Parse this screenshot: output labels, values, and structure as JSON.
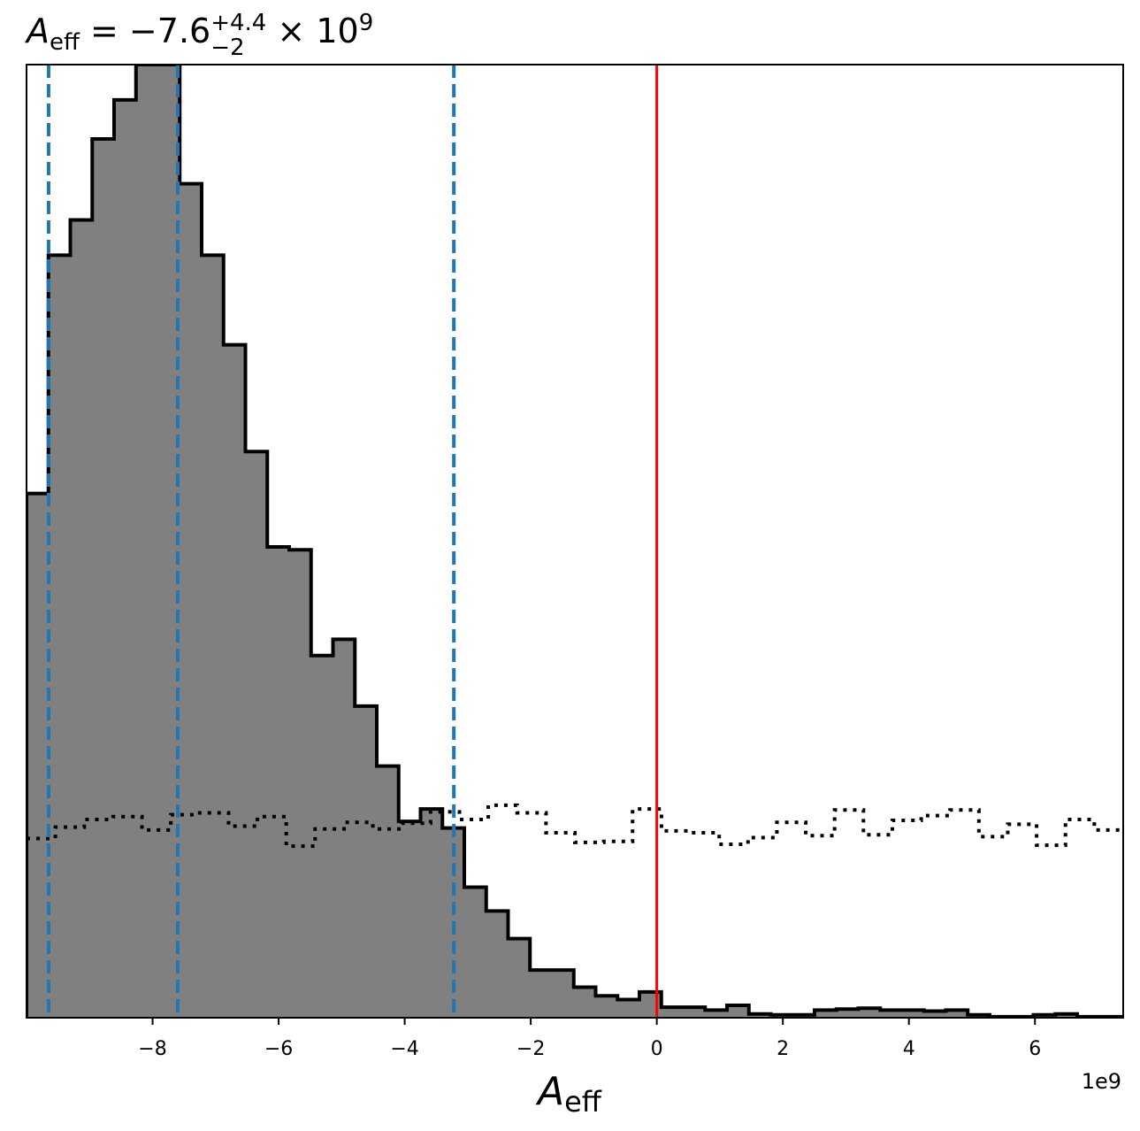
{
  "chart_data": {
    "type": "histogram",
    "title": {
      "symbol": "A",
      "symbol_sub": "eff",
      "equals": " = ",
      "median": "−7.6",
      "err_plus": "+4.4",
      "err_minus": "−2",
      "multiplier": " × 10",
      "exponent": "9"
    },
    "xlabel": {
      "symbol": "A",
      "sub": "eff"
    },
    "x_offset_label": "1e9",
    "x_scale": 1000000000.0,
    "xlim": [
      -10,
      7.4
    ],
    "ylim": [
      0,
      1.0
    ],
    "xticks": [
      -8,
      -6,
      -4,
      -2,
      0,
      2,
      4,
      6
    ],
    "xtick_labels": [
      "−8",
      "−6",
      "−4",
      "−2",
      "0",
      "2",
      "4",
      "6"
    ],
    "yticks_visible": false,
    "bin_width": 0.3473,
    "series": [
      {
        "style": "filled-step",
        "fill": "#808080",
        "edge": "#000000",
        "values": [
          0.55,
          0.8,
          0.837,
          0.922,
          0.963,
          1.0,
          1.0,
          0.875,
          0.8,
          0.706,
          0.594,
          0.494,
          0.491,
          0.38,
          0.397,
          0.327,
          0.264,
          0.206,
          0.219,
          0.199,
          0.137,
          0.112,
          0.083,
          0.05,
          0.05,
          0.032,
          0.023,
          0.019,
          0.027,
          0.011,
          0.011,
          0.008,
          0.013,
          0.004,
          0.003,
          0.003,
          0.008,
          0.009,
          0.01,
          0.008,
          0.008,
          0.007,
          0.008,
          0.003,
          0.001,
          0.001,
          0.003,
          0.004,
          0.001,
          0.001
        ]
      },
      {
        "style": "dotted-step",
        "edge": "#000000",
        "values": [
          0.188,
          0.2,
          0.208,
          0.211,
          0.197,
          0.213,
          0.215,
          0.201,
          0.211,
          0.18,
          0.198,
          0.205,
          0.198,
          0.204,
          0.216,
          0.208,
          0.223,
          0.215,
          0.194,
          0.184,
          0.185,
          0.219,
          0.196,
          0.194,
          0.182,
          0.189,
          0.205,
          0.191,
          0.218,
          0.192,
          0.207,
          0.212,
          0.218,
          0.19,
          0.203,
          0.181,
          0.208,
          0.197
        ]
      }
    ],
    "vlines": [
      {
        "x": -9.65,
        "color": "#1f77b4",
        "style": "dashed"
      },
      {
        "x": -7.6,
        "color": "#1f77b4",
        "style": "dashed"
      },
      {
        "x": -3.22,
        "color": "#1f77b4",
        "style": "dashed"
      },
      {
        "x": 0,
        "color": "#ff0000",
        "style": "solid"
      }
    ]
  }
}
